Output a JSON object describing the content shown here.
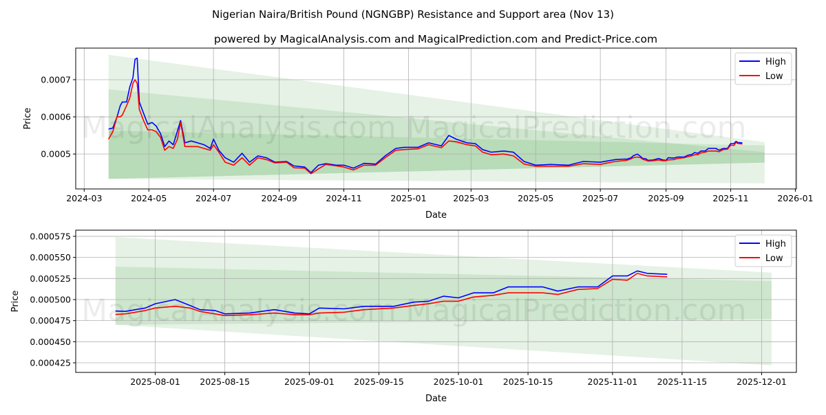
{
  "title": "Nigerian Naira/British Pound (NGNGBP) Resistance and Support area (Nov 13)",
  "subtitle": "powered by MagicalAnalysis.com and MagicalPrediction.com and Predict-Price.com",
  "watermarks": [
    "MagicalAnalysis.com",
    "MagicalPrediction.com"
  ],
  "colors": {
    "high": "#0000ff",
    "low": "#ff0000",
    "band": "#008000"
  },
  "chart_data": {
    "type": "line",
    "legend": {
      "high": "High",
      "low": "Low",
      "placement": "top-right"
    },
    "prices": {
      "dates": [
        "2024-03-24",
        "2024-03-28",
        "2024-04-01",
        "2024-04-04",
        "2024-04-06",
        "2024-04-10",
        "2024-04-13",
        "2024-04-16",
        "2024-04-18",
        "2024-04-20",
        "2024-04-22",
        "2024-04-26",
        "2024-04-30",
        "2024-05-04",
        "2024-05-08",
        "2024-05-12",
        "2024-05-16",
        "2024-05-20",
        "2024-05-24",
        "2024-05-28",
        "2024-05-31",
        "2024-06-04",
        "2024-06-10",
        "2024-06-16",
        "2024-06-22",
        "2024-06-28",
        "2024-07-01",
        "2024-07-06",
        "2024-07-12",
        "2024-07-20",
        "2024-07-28",
        "2024-08-04",
        "2024-08-12",
        "2024-08-20",
        "2024-08-28",
        "2024-09-08",
        "2024-09-15",
        "2024-09-25",
        "2024-10-01",
        "2024-10-08",
        "2024-10-15",
        "2024-10-25",
        "2024-11-01",
        "2024-11-10",
        "2024-11-20",
        "2024-12-01",
        "2024-12-10",
        "2024-12-20",
        "2024-12-28",
        "2025-01-10",
        "2025-01-20",
        "2025-02-01",
        "2025-02-08",
        "2025-02-15",
        "2025-02-25",
        "2025-03-05",
        "2025-03-12",
        "2025-03-20",
        "2025-04-01",
        "2025-04-10",
        "2025-04-20",
        "2025-05-01",
        "2025-05-15",
        "2025-06-01",
        "2025-06-15",
        "2025-07-01",
        "2025-07-15",
        "2025-07-24",
        "2025-07-26",
        "2025-07-28",
        "2025-07-30",
        "2025-08-01",
        "2025-08-05",
        "2025-08-08",
        "2025-08-10",
        "2025-08-13",
        "2025-08-15",
        "2025-08-20",
        "2025-08-25",
        "2025-08-29",
        "2025-09-01",
        "2025-09-03",
        "2025-09-08",
        "2025-09-12",
        "2025-09-18",
        "2025-09-22",
        "2025-09-25",
        "2025-09-28",
        "2025-10-01",
        "2025-10-04",
        "2025-10-08",
        "2025-10-11",
        "2025-10-18",
        "2025-10-21",
        "2025-10-25",
        "2025-10-29",
        "2025-11-01",
        "2025-11-04",
        "2025-11-06",
        "2025-11-08",
        "2025-11-12"
      ],
      "high": [
        0.000567,
        0.00057,
        0.0006,
        0.00063,
        0.00064,
        0.00064,
        0.00068,
        0.000705,
        0.000755,
        0.000758,
        0.00064,
        0.00061,
        0.00058,
        0.000585,
        0.000575,
        0.000555,
        0.00052,
        0.000535,
        0.000525,
        0.000562,
        0.00059,
        0.00053,
        0.000535,
        0.00053,
        0.000525,
        0.000515,
        0.00054,
        0.00051,
        0.00049,
        0.000478,
        0.000502,
        0.000478,
        0.000495,
        0.00049,
        0.000478,
        0.00048,
        0.000468,
        0.000465,
        0.00045,
        0.00047,
        0.000474,
        0.00047,
        0.00047,
        0.000462,
        0.000475,
        0.000473,
        0.000495,
        0.000515,
        0.000518,
        0.000518,
        0.00053,
        0.000522,
        0.00055,
        0.00054,
        0.00053,
        0.000528,
        0.000512,
        0.000505,
        0.000508,
        0.000505,
        0.00048,
        0.00047,
        0.000472,
        0.00047,
        0.00048,
        0.000478,
        0.000485,
        0.0004864,
        0.000486,
        0.000488,
        0.00049,
        0.000495,
        0.0005,
        0.000493,
        0.000488,
        0.000487,
        0.000483,
        0.000484,
        0.000488,
        0.000484,
        0.000483,
        0.00049,
        0.000489,
        0.000492,
        0.000492,
        0.000497,
        0.000498,
        0.000504,
        0.000502,
        0.000508,
        0.000508,
        0.000515,
        0.000515,
        0.00051,
        0.000515,
        0.000515,
        0.000528,
        0.000528,
        0.000534,
        0.000531,
        0.00053
      ],
      "low": [
        0.00054,
        0.00056,
        0.0006,
        0.0006,
        0.000605,
        0.00063,
        0.00065,
        0.00069,
        0.0007,
        0.00069,
        0.00062,
        0.00059,
        0.000565,
        0.000565,
        0.00056,
        0.000545,
        0.00051,
        0.00052,
        0.000515,
        0.00054,
        0.000585,
        0.00052,
        0.00052,
        0.00052,
        0.000515,
        0.00051,
        0.000525,
        0.000505,
        0.000478,
        0.00047,
        0.00049,
        0.00047,
        0.00049,
        0.000485,
        0.000476,
        0.000478,
        0.000463,
        0.000462,
        0.000447,
        0.00046,
        0.000472,
        0.000468,
        0.000465,
        0.000457,
        0.00047,
        0.00047,
        0.00049,
        0.00051,
        0.000512,
        0.000514,
        0.000525,
        0.000517,
        0.000535,
        0.000533,
        0.000525,
        0.000522,
        0.000505,
        0.000498,
        0.0005,
        0.000495,
        0.000473,
        0.000467,
        0.000467,
        0.000467,
        0.000474,
        0.000472,
        0.00048,
        0.0004823,
        0.000483,
        0.000485,
        0.000487,
        0.00049,
        0.000492,
        0.00049,
        0.000486,
        0.000483,
        0.000481,
        0.000482,
        0.000484,
        0.000482,
        0.000482,
        0.000484,
        0.000485,
        0.000488,
        0.00049,
        0.000493,
        0.000495,
        0.000498,
        0.000498,
        0.000503,
        0.000505,
        0.000508,
        0.000508,
        0.000506,
        0.000512,
        0.000513,
        0.000524,
        0.000523,
        0.000531,
        0.000528,
        0.000527
      ]
    },
    "panels": [
      {
        "name": "full-history",
        "xlabel": "Date",
        "ylabel": "Price",
        "xlim": [
          "2024-02-22",
          "2026-01-02"
        ],
        "ylim": [
          0.000406,
          0.000785
        ],
        "grid": true,
        "xticks": [
          "2024-03",
          "2024-05",
          "2024-07",
          "2024-09",
          "2024-11",
          "2025-01",
          "2025-03",
          "2025-05",
          "2025-07",
          "2025-09",
          "2025-11",
          "2026-01"
        ],
        "yticks": [
          {
            "value": 0.0005,
            "label": "0.0005"
          },
          {
            "value": 0.0006,
            "label": "0.0006"
          },
          {
            "value": 0.0007,
            "label": "0.0007"
          }
        ],
        "bands": [
          {
            "start": "2024-03-24",
            "end": "2025-12-03",
            "top": [
              0.000767,
              0.000532
            ],
            "bottom": [
              0.000433,
              0.000421
            ]
          },
          {
            "start": "2024-03-24",
            "end": "2025-12-03",
            "top": [
              0.000674,
              0.000505
            ],
            "bottom": [
              0.000433,
              0.000477
            ]
          },
          {
            "start": "2024-03-24",
            "end": "2025-12-03",
            "top": [
              0.000563,
              0.000523
            ],
            "bottom": [
              0.000433,
              0.000477
            ]
          }
        ]
      },
      {
        "name": "recent",
        "xlabel": "Date",
        "ylabel": "Price",
        "xlim": [
          "2025-07-16",
          "2025-12-08"
        ],
        "ylim": [
          0.0004136,
          0.0005823
        ],
        "grid": true,
        "xticks": [
          "2025-08-01",
          "2025-08-15",
          "2025-09-01",
          "2025-09-15",
          "2025-10-01",
          "2025-10-15",
          "2025-11-01",
          "2025-11-15",
          "2025-12-01"
        ],
        "yticks": [
          {
            "value": 0.000425,
            "label": "0.000425"
          },
          {
            "value": 0.00045,
            "label": "0.000450"
          },
          {
            "value": 0.000475,
            "label": "0.000475"
          },
          {
            "value": 0.0005,
            "label": "0.000500"
          },
          {
            "value": 0.000525,
            "label": "0.000525"
          },
          {
            "value": 0.00055,
            "label": "0.000550"
          },
          {
            "value": 0.000575,
            "label": "0.000575"
          }
        ],
        "show_from": "2025-07-24",
        "bands": [
          {
            "start": "2025-07-24",
            "end": "2025-12-03",
            "top": [
              0.000574,
              0.000532
            ],
            "bottom": [
              0.00047,
              0.000422
            ]
          },
          {
            "start": "2025-07-24",
            "end": "2025-12-03",
            "top": [
              0.000539,
              0.000522
            ],
            "bottom": [
              0.00047,
              0.000477
            ]
          }
        ]
      }
    ]
  }
}
